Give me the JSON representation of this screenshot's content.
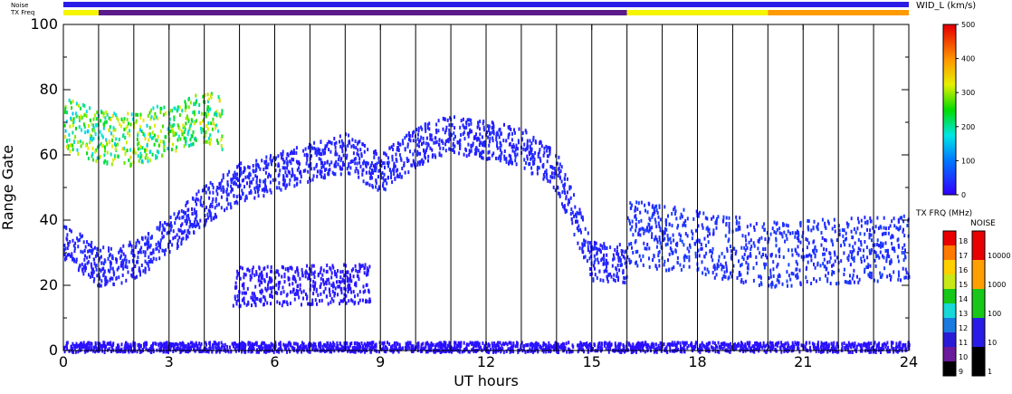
{
  "chart_data": {
    "type": "heatmap",
    "xlabel": "UT hours",
    "ylabel": "Range Gate",
    "xlim": [
      0,
      24
    ],
    "ylim": [
      0,
      100
    ],
    "x_ticks": [
      "0",
      "3",
      "6",
      "9",
      "12",
      "15",
      "18",
      "21",
      "24"
    ],
    "y_ticks": [
      "0",
      "20",
      "40",
      "60",
      "80",
      "100"
    ],
    "status_rows": [
      {
        "label": "Noise",
        "segments": [
          {
            "start": 0,
            "end": 24,
            "color": "#2a1ce6"
          }
        ]
      },
      {
        "label": "TX Freq",
        "segments": [
          {
            "start": 0,
            "end": 1,
            "color": "#f5f500"
          },
          {
            "start": 1,
            "end": 16,
            "color": "#5a1a8a"
          },
          {
            "start": 16,
            "end": 20,
            "color": "#f5f500"
          },
          {
            "start": 20,
            "end": 24,
            "color": "#ff9a00"
          }
        ]
      }
    ],
    "colorbars": [
      {
        "title": "WID_L (km/s)",
        "ticks": [
          "0",
          "100",
          "200",
          "300",
          "400",
          "500"
        ],
        "range": [
          0,
          500
        ]
      },
      {
        "title": "TX FRQ (MHz)",
        "levels": [
          "9",
          "10",
          "11",
          "12",
          "13",
          "14",
          "15",
          "16",
          "17",
          "18"
        ],
        "colors": [
          "#000000",
          "#6a1a9a",
          "#2a1cd6",
          "#1a7ae0",
          "#18d8d8",
          "#18c818",
          "#c8e818",
          "#ffd000",
          "#ff7a00",
          "#e80000"
        ]
      },
      {
        "title": "NOISE",
        "levels": [
          "1",
          "10",
          "100",
          "1000",
          "10000"
        ],
        "colors": [
          "#000000",
          "#2a1ce6",
          "#18c818",
          "#ffa000",
          "#e80000"
        ]
      }
    ],
    "scatter_bands": [
      {
        "name": "band_a",
        "points": [
          [
            0,
            34
          ],
          [
            1,
            26
          ],
          [
            2,
            28
          ],
          [
            3,
            36
          ],
          [
            4,
            45
          ],
          [
            5,
            52
          ],
          [
            6,
            55
          ],
          [
            7,
            58
          ],
          [
            8,
            61
          ],
          [
            9,
            55
          ],
          [
            10,
            63
          ],
          [
            11,
            67
          ],
          [
            12,
            65
          ],
          [
            13,
            63
          ],
          [
            14,
            55
          ],
          [
            15,
            28
          ],
          [
            16,
            27
          ]
        ],
        "width": 6,
        "value": 30
      },
      {
        "name": "band_b",
        "points": [
          [
            4.8,
            20
          ],
          [
            8.7,
            21
          ]
        ],
        "width": 6,
        "value": 20
      },
      {
        "name": "band_c",
        "points": [
          [
            0,
            1
          ],
          [
            24,
            1
          ]
        ],
        "width": 2,
        "value": 15
      },
      {
        "name": "band_d",
        "points": [
          [
            16,
            37
          ],
          [
            20,
            30
          ],
          [
            24,
            32
          ]
        ],
        "width": 10,
        "value": 40
      },
      {
        "name": "band_e",
        "points": [
          [
            0,
            70
          ],
          [
            1,
            66
          ],
          [
            2,
            65
          ],
          [
            3,
            69
          ],
          [
            4,
            72
          ],
          [
            4.5,
            70
          ]
        ],
        "width": 8,
        "value": 250
      }
    ]
  }
}
